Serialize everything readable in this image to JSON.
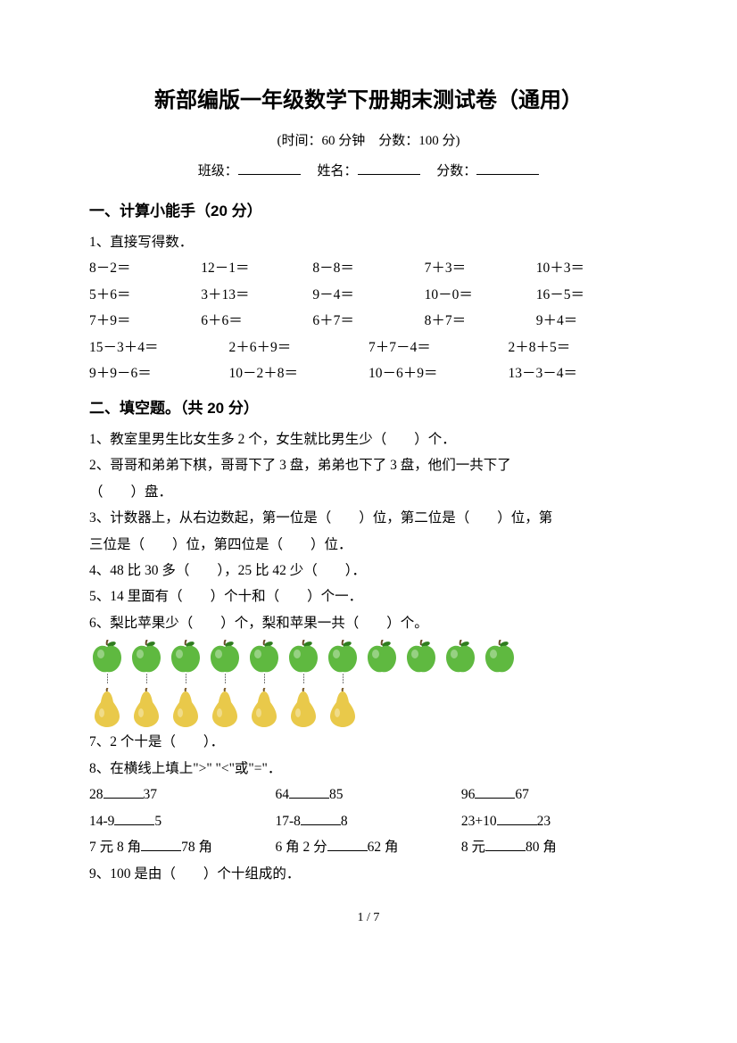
{
  "title": "新部编版一年级数学下册期末测试卷（通用）",
  "subtitle": "(时间：60 分钟　分数：100 分)",
  "info": {
    "class_label": "班级：",
    "name_label": "姓名：",
    "score_label": "分数："
  },
  "section1": {
    "heading": "一、计算小能手（20 分）",
    "q1_label": "1、直接写得数．",
    "rows5": [
      [
        "8－2＝",
        "12－1＝",
        "8－8＝",
        "7＋3＝",
        "10＋3＝"
      ],
      [
        "5＋6＝",
        "3＋13＝",
        "9－4＝",
        "10－0＝",
        "16－5＝"
      ],
      [
        "7＋9＝",
        "6＋6＝",
        "6＋7＝",
        "8＋7＝",
        "9＋4＝"
      ]
    ],
    "rows4": [
      [
        "15－3＋4＝",
        "2＋6＋9＝",
        "7＋7－4＝",
        "2＋8＋5＝"
      ],
      [
        "9＋9－6＝",
        "10－2＋8＝",
        "10－6＋9＝",
        "13－3－4＝"
      ]
    ]
  },
  "section2": {
    "heading": "二、填空题。（共 20 分）",
    "q1": "1、教室里男生比女生多 2 个，女生就比男生少（　　）个．",
    "q2a": "2、哥哥和弟弟下棋，哥哥下了 3 盘，弟弟也下了 3 盘，他们一共下了",
    "q2b": "（　　）盘．",
    "q3a": "3、计数器上，从右边数起，第一位是（　　）位，第二位是（　　）位，第",
    "q3b": "三位是（　　）位，第四位是（　　）位．",
    "q4": "4、48 比 30 多（　　），25 比 42 少（　　）．",
    "q5": "5、14 里面有（　　）个十和（　　）个一．",
    "q6": "6、梨比苹果少（　　）个，梨和苹果一共（　　）个。",
    "apple_count": 11,
    "pear_count": 7,
    "apple_color": "#5fb940",
    "apple_stem": "#6b4a2a",
    "apple_leaf": "#2f7d1f",
    "pear_color": "#e9c94a",
    "pear_stem": "#7a5a2a",
    "q7": "7、2 个十是（　　）．",
    "q8_label": "8、在横线上填上\">\" \"<\"或\"=\"．",
    "compare": [
      [
        {
          "l": "28",
          "r": "37"
        },
        {
          "l": "64",
          "r": "85"
        },
        {
          "l": "96",
          "r": "67"
        }
      ],
      [
        {
          "l": "14-9",
          "r": "5"
        },
        {
          "l": "17-8",
          "r": "8"
        },
        {
          "l": "23+10",
          "r": "23"
        }
      ],
      [
        {
          "l": "7 元 8 角",
          "r": "78 角"
        },
        {
          "l": "6 角 2 分",
          "r": "62 角"
        },
        {
          "l": "8 元",
          "r": "80 角"
        }
      ]
    ],
    "q9": "9、100 是由（　　）个十组成的．"
  },
  "footer": "1 / 7"
}
